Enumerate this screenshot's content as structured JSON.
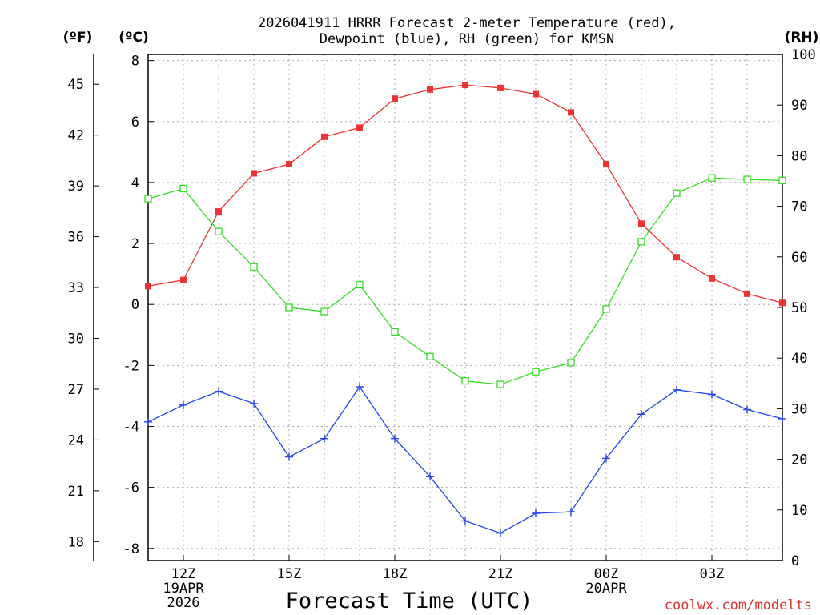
{
  "chart_data": {
    "type": "line",
    "title_line1": "2026041911 HRRR Forecast 2-meter Temperature (red),",
    "title_line2": "Dewpoint (blue), RH (green) for KMSN",
    "xlabel": "Forecast Time (UTC)",
    "unit_labels": {
      "fahrenheit": "(ºF)",
      "celsius": "(ºC)",
      "rh": "(RH)"
    },
    "credit": "coolwx.com/modelts",
    "x_hours": [
      11,
      12,
      13,
      14,
      15,
      16,
      17,
      18,
      19,
      20,
      21,
      22,
      23,
      24,
      25,
      26,
      27,
      28,
      29
    ],
    "x_range": [
      11,
      29
    ],
    "x_ticks": [
      {
        "hour": 12,
        "lines": [
          "12Z",
          "19APR",
          "2026"
        ]
      },
      {
        "hour": 15,
        "lines": [
          "15Z"
        ]
      },
      {
        "hour": 18,
        "lines": [
          "18Z"
        ]
      },
      {
        "hour": 21,
        "lines": [
          "21Z"
        ]
      },
      {
        "hour": 24,
        "lines": [
          "00Z",
          "20APR"
        ]
      },
      {
        "hour": 27,
        "lines": [
          "03Z"
        ]
      }
    ],
    "celsius_axis": {
      "range": [
        -8.4,
        8.2
      ],
      "ticks": [
        -8,
        -6,
        -4,
        -2,
        0,
        2,
        4,
        6,
        8
      ],
      "tick_labels": [
        "-8",
        "-6",
        "-4",
        "-2",
        "0",
        "2",
        "4",
        "6",
        "8"
      ]
    },
    "fahrenheit_axis": {
      "ticks": [
        18,
        21,
        24,
        27,
        30,
        33,
        36,
        39,
        42,
        45
      ],
      "tick_labels": [
        "18",
        "21",
        "24",
        "27",
        "30",
        "33",
        "36",
        "39",
        "42",
        "45"
      ]
    },
    "rh_axis": {
      "range": [
        0,
        100
      ],
      "ticks": [
        0,
        10,
        20,
        30,
        40,
        50,
        60,
        70,
        80,
        90,
        100
      ],
      "tick_labels": [
        "0",
        "10",
        "20",
        "30",
        "40",
        "50",
        "60",
        "70",
        "80",
        "90",
        "100"
      ]
    },
    "series": [
      {
        "name": "2-meter Temperature (°C)",
        "color": "#ee3333",
        "marker": "filled-square",
        "axis": "celsius",
        "values": [
          0.6,
          0.8,
          3.05,
          4.3,
          4.6,
          5.5,
          5.8,
          6.75,
          7.05,
          7.2,
          7.1,
          6.9,
          6.3,
          4.6,
          2.65,
          1.55,
          0.85,
          0.35,
          0.05
        ]
      },
      {
        "name": "Dewpoint (°C)",
        "color": "#2244ee",
        "marker": "plus",
        "axis": "celsius",
        "values": [
          -3.85,
          -3.3,
          -2.85,
          -3.25,
          -5.0,
          -4.4,
          -2.7,
          -4.4,
          -5.65,
          -7.1,
          -7.5,
          -6.85,
          -6.8,
          -5.05,
          -3.6,
          -2.8,
          -2.95,
          -3.45,
          -3.75
        ]
      },
      {
        "name": "RH (%)",
        "color": "#33dd22",
        "marker": "open-square",
        "axis": "rh",
        "values": [
          71.5,
          73.5,
          65.0,
          58.0,
          50.0,
          49.2,
          54.5,
          45.2,
          40.3,
          35.5,
          34.8,
          37.3,
          39.1,
          49.7,
          63.0,
          72.6,
          75.6,
          75.3,
          75.1
        ]
      }
    ]
  }
}
